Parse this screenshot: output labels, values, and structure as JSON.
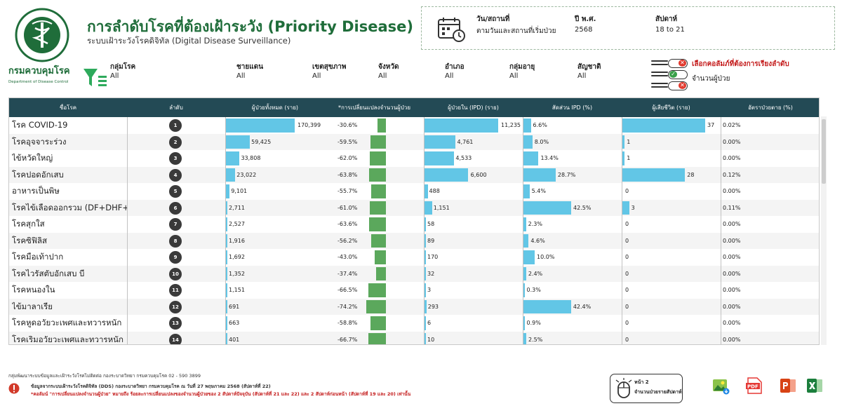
{
  "header": {
    "logo_top_text": "กระทรวงสาธารณสุข",
    "logo_bottom_text": "MINISTRY OF PUBLIC HEALTH",
    "dept_name_th": "กรมควบคุมโรค",
    "dept_name_en": "Department of Disease Control",
    "title": "การลำดับโรคที่ต้องเฝ้าระวัง (Priority Disease)",
    "subtitle": "ระบบเฝ้าระวังโรคดิจิทัล (Digital Disease Surveillance)"
  },
  "info": {
    "date_label": "วัน/สถานที่",
    "date_value": "ตามวันและสถานที่เริ่มป่วย",
    "year_label": "ปี พ.ศ.",
    "year_value": "2568",
    "week_label": "สัปดาห์",
    "week_value": "18 to 21"
  },
  "filters": [
    {
      "label": "กลุ่มโรค",
      "value": "All"
    },
    {
      "label": "ชายแดน",
      "value": "All"
    },
    {
      "label": "เขตสุขภาพ",
      "value": "All"
    },
    {
      "label": "จังหวัด",
      "value": "All"
    },
    {
      "label": "อำเภอ",
      "value": "All"
    },
    {
      "label": "กลุ่มอายุ",
      "value": "All"
    },
    {
      "label": "สัญชาติ",
      "value": "All"
    }
  ],
  "sort": {
    "title": "เลือกคอลัมภ์ที่ต้องการเรียงลำดับ",
    "option": "จำนวนผู้ป่วย"
  },
  "colors": {
    "accent": "#1f6d3a",
    "header_bg": "#234a55",
    "bar_blue": "#62c6e6",
    "bar_green": "#5ba85c",
    "warn_red": "#c31919"
  },
  "table": {
    "headers": [
      "ชื่อโรค",
      "ลำดับ",
      "ผู้ป่วยทั้งหมด (ราย)",
      "*การเปลี่ยนแปลงจำนวนผู้ป่วย",
      "ผู้ป่วยใน (IPD) (ราย)",
      "สัดส่วน IPD (%)",
      "ผู้เสียชีวิต (ราย)",
      "อัตราป่วยตาย (%)"
    ],
    "rows": [
      {
        "name": "โรค COVID-19",
        "rank": "1",
        "total": "170,399",
        "total_v": 170399,
        "change": "-30.6%",
        "change_v": -30.6,
        "ipd": "11,235",
        "ipd_v": 11235,
        "ipd_pct": "6.6%",
        "ipd_pct_v": 6.6,
        "deaths": "37",
        "deaths_v": 37,
        "cfr": "0.02%"
      },
      {
        "name": "โรคอุจจาระร่วง",
        "rank": "2",
        "total": "59,425",
        "total_v": 59425,
        "change": "-59.5%",
        "change_v": -59.5,
        "ipd": "4,761",
        "ipd_v": 4761,
        "ipd_pct": "8.0%",
        "ipd_pct_v": 8.0,
        "deaths": "1",
        "deaths_v": 1,
        "cfr": "0.00%"
      },
      {
        "name": "ไข้หวัดใหญ่",
        "rank": "3",
        "total": "33,808",
        "total_v": 33808,
        "change": "-62.0%",
        "change_v": -62.0,
        "ipd": "4,533",
        "ipd_v": 4533,
        "ipd_pct": "13.4%",
        "ipd_pct_v": 13.4,
        "deaths": "1",
        "deaths_v": 1,
        "cfr": "0.00%"
      },
      {
        "name": "โรคปอดอักเสบ",
        "rank": "4",
        "total": "23,022",
        "total_v": 23022,
        "change": "-63.8%",
        "change_v": -63.8,
        "ipd": "6,600",
        "ipd_v": 6600,
        "ipd_pct": "28.7%",
        "ipd_pct_v": 28.7,
        "deaths": "28",
        "deaths_v": 28,
        "cfr": "0.12%"
      },
      {
        "name": "อาหารเป็นพิษ",
        "rank": "5",
        "total": "9,101",
        "total_v": 9101,
        "change": "-55.7%",
        "change_v": -55.7,
        "ipd": "488",
        "ipd_v": 488,
        "ipd_pct": "5.4%",
        "ipd_pct_v": 5.4,
        "deaths": "0",
        "deaths_v": 0,
        "cfr": "0.00%"
      },
      {
        "name": "โรคไข้เลือดออกรวม (DF+DHF+D..",
        "rank": "6",
        "total": "2,711",
        "total_v": 2711,
        "change": "-61.0%",
        "change_v": -61.0,
        "ipd": "1,151",
        "ipd_v": 1151,
        "ipd_pct": "42.5%",
        "ipd_pct_v": 42.5,
        "deaths": "3",
        "deaths_v": 3,
        "cfr": "0.11%"
      },
      {
        "name": "โรคสุกใส",
        "rank": "7",
        "total": "2,527",
        "total_v": 2527,
        "change": "-63.6%",
        "change_v": -63.6,
        "ipd": "58",
        "ipd_v": 58,
        "ipd_pct": "2.3%",
        "ipd_pct_v": 2.3,
        "deaths": "0",
        "deaths_v": 0,
        "cfr": "0.00%"
      },
      {
        "name": "โรคซิฟิลิส",
        "rank": "8",
        "total": "1,916",
        "total_v": 1916,
        "change": "-56.2%",
        "change_v": -56.2,
        "ipd": "89",
        "ipd_v": 89,
        "ipd_pct": "4.6%",
        "ipd_pct_v": 4.6,
        "deaths": "0",
        "deaths_v": 0,
        "cfr": "0.00%"
      },
      {
        "name": "โรคมือเท้าปาก",
        "rank": "9",
        "total": "1,692",
        "total_v": 1692,
        "change": "-43.0%",
        "change_v": -43.0,
        "ipd": "170",
        "ipd_v": 170,
        "ipd_pct": "10.0%",
        "ipd_pct_v": 10.0,
        "deaths": "0",
        "deaths_v": 0,
        "cfr": "0.00%"
      },
      {
        "name": "โรคไวรัสตับอักเสบ บี",
        "rank": "10",
        "total": "1,352",
        "total_v": 1352,
        "change": "-37.4%",
        "change_v": -37.4,
        "ipd": "32",
        "ipd_v": 32,
        "ipd_pct": "2.4%",
        "ipd_pct_v": 2.4,
        "deaths": "0",
        "deaths_v": 0,
        "cfr": "0.00%"
      },
      {
        "name": "โรคหนองใน",
        "rank": "11",
        "total": "1,151",
        "total_v": 1151,
        "change": "-66.5%",
        "change_v": -66.5,
        "ipd": "3",
        "ipd_v": 3,
        "ipd_pct": "0.3%",
        "ipd_pct_v": 0.3,
        "deaths": "0",
        "deaths_v": 0,
        "cfr": "0.00%"
      },
      {
        "name": "ไข้มาลาเรีย",
        "rank": "12",
        "total": "691",
        "total_v": 691,
        "change": "-74.2%",
        "change_v": -74.2,
        "ipd": "293",
        "ipd_v": 293,
        "ipd_pct": "42.4%",
        "ipd_pct_v": 42.4,
        "deaths": "0",
        "deaths_v": 0,
        "cfr": "0.00%"
      },
      {
        "name": "โรคหูดอวัยวะเพศและทวารหนัก",
        "rank": "13",
        "total": "663",
        "total_v": 663,
        "change": "-58.8%",
        "change_v": -58.8,
        "ipd": "6",
        "ipd_v": 6,
        "ipd_pct": "0.9%",
        "ipd_pct_v": 0.9,
        "deaths": "0",
        "deaths_v": 0,
        "cfr": "0.00%"
      },
      {
        "name": "โรคเริมอวัยวะเพศและทวารหนัก",
        "rank": "14",
        "total": "401",
        "total_v": 401,
        "change": "-66.7%",
        "change_v": -66.7,
        "ipd": "10",
        "ipd_v": 10,
        "ipd_pct": "2.5%",
        "ipd_pct_v": 2.5,
        "deaths": "0",
        "deaths_v": 0,
        "cfr": "0.00%"
      }
    ]
  },
  "footer": {
    "contact": "กลุ่มพัฒนาระบบข้อมูลและเฝ้าระวังโรคไม่ติดต่อ กองระบาดวิทยา กรมควบคุมโรค 02 - 590 3899",
    "source": "ข้อมูลจากระบบเฝ้าระวังโรคดิจิทัล (DDS) กองระบาดวิทยา กรมควบคุมโรค ณ วันที่ 27 พฤษภาคม 2568 (สัปดาห์ที่ 22)",
    "note": "*คอลัมน์ \"การเปลี่ยนแปลงจำนวนผู้ป่วย\" หมายถึง ร้อยละการเปลี่ยนแปลงของจำนวนผู้ป่วยของ 2 สัปดาห์ปัจจุบัน (สัปดาห์ที่ 21 และ 22) และ 2 สัปดาห์ก่อนหน้า (สัปดาห์ที่ 19 และ 20) เท่านั้น",
    "nav_line1": "หน้า 2",
    "nav_line2": "จำนวนป่วยรายสัปดาห์",
    "export_pdf": "PDF"
  }
}
